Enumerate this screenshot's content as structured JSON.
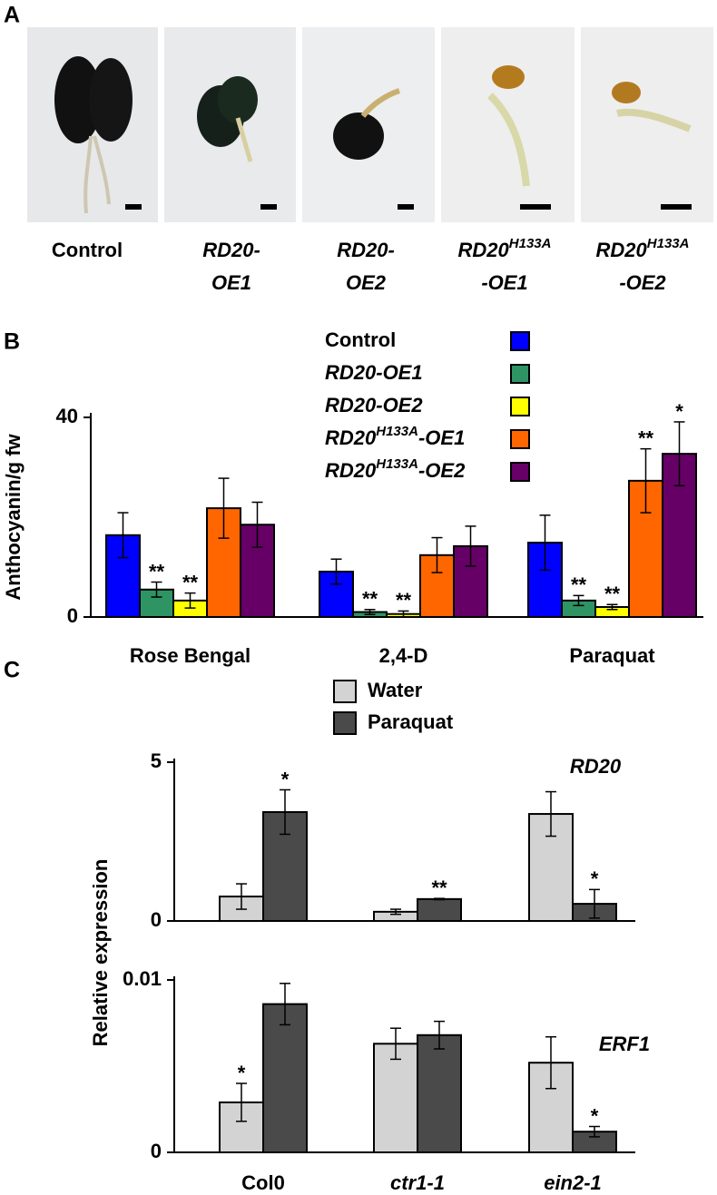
{
  "panel_labels": [
    "A",
    "B",
    "C"
  ],
  "panel_a": {
    "captions": [
      [
        [
          {
            "text": "Control"
          }
        ]
      ],
      [
        [
          {
            "text": "RD20-",
            "italic": true
          }
        ],
        [
          {
            "text": "OE1",
            "italic": true
          }
        ]
      ],
      [
        [
          {
            "text": "RD20-",
            "italic": true
          }
        ],
        [
          {
            "text": "OE2",
            "italic": true
          }
        ]
      ],
      [
        [
          {
            "text": "RD20",
            "italic": true
          },
          {
            "text": "H133A",
            "italic": true,
            "sup": true
          }
        ],
        [
          {
            "text": "-OE1",
            "italic": true
          }
        ]
      ],
      [
        [
          {
            "text": "RD20",
            "italic": true
          },
          {
            "text": "H133A",
            "italic": true,
            "sup": true
          }
        ],
        [
          {
            "text": "-OE2",
            "italic": true
          }
        ]
      ]
    ]
  },
  "chart_data": [
    {
      "type": "bar",
      "ylabel": "Anthocyanin/g fw",
      "categories": [
        "Rose Bengal",
        "2,4-D",
        "Paraquat"
      ],
      "ylim": [
        0,
        40
      ],
      "yticks": [
        0,
        40
      ],
      "series": [
        {
          "name": [
            {
              "text": "Control"
            }
          ],
          "color": "#0000ff",
          "values": [
            16.4,
            9.1,
            14.9
          ],
          "errors": [
            4.5,
            2.5,
            5.5
          ],
          "significance": [
            null,
            null,
            null
          ]
        },
        {
          "name": [
            {
              "text": "RD20-OE1",
              "italic": true
            }
          ],
          "color": "#2e9464",
          "values": [
            5.5,
            1.0,
            3.3
          ],
          "errors": [
            1.5,
            0.5,
            1.0
          ],
          "significance": [
            "**",
            "**",
            "**"
          ]
        },
        {
          "name": [
            {
              "text": "RD20-OE2",
              "italic": true
            }
          ],
          "color": "#ffff00",
          "values": [
            3.3,
            0.6,
            2.0
          ],
          "errors": [
            1.5,
            0.6,
            0.5
          ],
          "significance": [
            "**",
            "**",
            "**"
          ]
        },
        {
          "name": [
            {
              "text": "RD20",
              "italic": true
            },
            {
              "text": "H133A",
              "italic": true,
              "sup": true
            },
            {
              "text": "-OE1",
              "italic": true
            }
          ],
          "color": "#ff6600",
          "values": [
            21.8,
            12.4,
            27.3
          ],
          "errors": [
            6.0,
            3.5,
            6.4
          ],
          "significance": [
            null,
            null,
            "**"
          ]
        },
        {
          "name": [
            {
              "text": "RD20",
              "italic": true
            },
            {
              "text": "H133A",
              "italic": true,
              "sup": true
            },
            {
              "text": "-OE2",
              "italic": true
            }
          ],
          "color": "#660066",
          "values": [
            18.5,
            14.2,
            32.7
          ],
          "errors": [
            4.5,
            4.0,
            6.4
          ],
          "significance": [
            null,
            null,
            "*"
          ]
        }
      ]
    },
    {
      "type": "bar",
      "ylabel": "Relative expression",
      "gene": "RD20",
      "ylim": [
        0,
        5
      ],
      "yticks": [
        0,
        5
      ],
      "series": [
        {
          "name": [
            {
              "text": "Water"
            }
          ],
          "color": "#d3d3d3",
          "values": [
            0.77,
            0.29,
            3.37
          ],
          "errors": [
            0.4,
            0.08,
            0.7
          ],
          "significance": [
            null,
            null,
            null
          ]
        },
        {
          "name": [
            {
              "text": "Paraquat"
            }
          ],
          "color": "#4a4a4a",
          "values": [
            3.43,
            0.69,
            0.54
          ],
          "errors": [
            0.7,
            0.02,
            0.45
          ],
          "significance": [
            "*",
            "**",
            "*"
          ]
        }
      ]
    },
    {
      "type": "bar",
      "gene": "ERF1",
      "categories": [
        "Col0",
        "ctr1-1",
        "ein2-1"
      ],
      "categories_italic": [
        false,
        true,
        true
      ],
      "ylim": [
        0,
        0.01
      ],
      "yticks": [
        0,
        0.01
      ],
      "series": [
        {
          "color": "#d3d3d3",
          "values": [
            0.0029,
            0.0063,
            0.0052
          ],
          "errors": [
            0.0011,
            0.0009,
            0.0015
          ],
          "significance": [
            "*",
            null,
            null
          ]
        },
        {
          "color": "#4a4a4a",
          "values": [
            0.0086,
            0.0068,
            0.0012
          ],
          "errors": [
            0.0012,
            0.0008,
            0.0003
          ],
          "significance": [
            null,
            null,
            "*"
          ]
        }
      ]
    }
  ]
}
